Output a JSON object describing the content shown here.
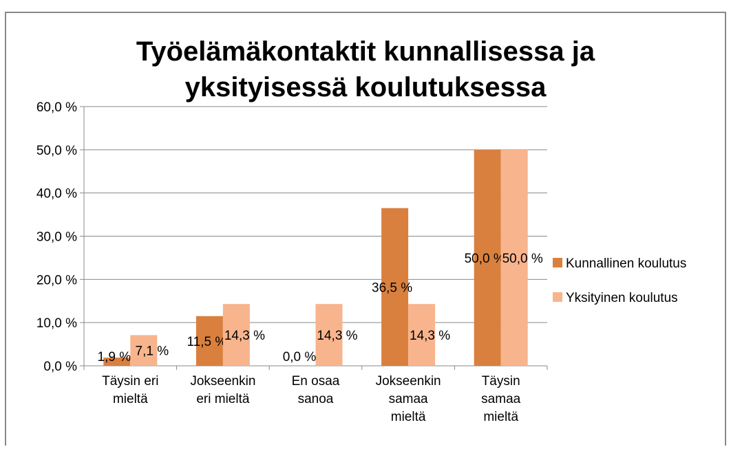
{
  "chart_data": {
    "type": "bar",
    "title": "Työelämäkontaktit kunnallisessa ja\nyksityisessä koulutuksessa",
    "categories": [
      "Täysin eri\nmieltä",
      "Jokseenkin\neri mieltä",
      "En osaa\nsanoa",
      "Jokseenkin\nsamaa\nmieltä",
      "Täysin\nsamaa\nmieltä"
    ],
    "series": [
      {
        "name": "Kunnallinen koulutus",
        "color": "#d9803e",
        "values": [
          1.9,
          11.5,
          0,
          36.5,
          50
        ],
        "value_labels": [
          "1,9 %",
          "11,5 %",
          "0,0 %",
          "36,5 %",
          "50,0 %"
        ]
      },
      {
        "name": "Yksityinen koulutus",
        "color": "#f8b48d",
        "values": [
          7.1,
          14.3,
          14.3,
          14.3,
          50
        ],
        "value_labels": [
          "7,1 %",
          "14,3 %",
          "14,3 %",
          "14,3 %",
          "50,0 %"
        ]
      }
    ],
    "ylim": [
      0,
      60
    ],
    "yticks": [
      {
        "value": 0,
        "label": "0,0 %"
      },
      {
        "value": 10,
        "label": "10,0 %"
      },
      {
        "value": 20,
        "label": "20,0 %"
      },
      {
        "value": 30,
        "label": "30,0 %"
      },
      {
        "value": 40,
        "label": "40,0 %"
      },
      {
        "value": 50,
        "label": "50,0 %"
      },
      {
        "value": 60,
        "label": "60,0 %"
      }
    ],
    "grid": true,
    "legend": "right"
  }
}
